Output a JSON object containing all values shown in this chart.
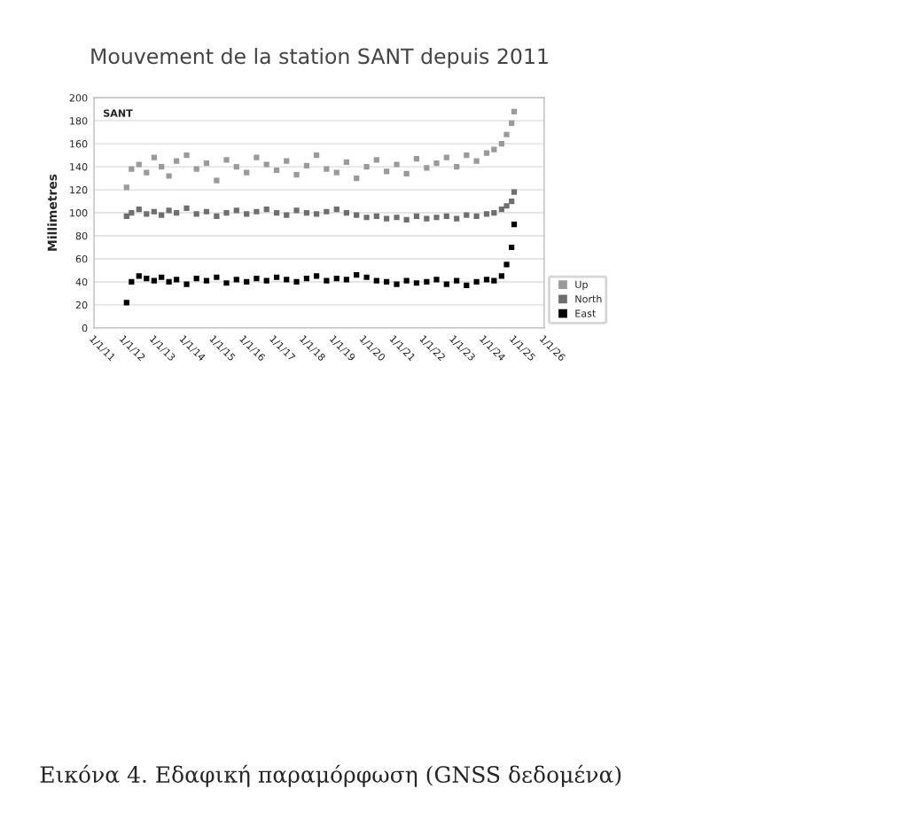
{
  "chart_data": {
    "type": "scatter",
    "title": "Mouvement de la station SANT depuis 2011",
    "ylabel": "Millimetres",
    "annotations": [
      "SANT",
      "Εικόνα 4. Εδαφική παραμόρφωση (GNSS δεδομένα)"
    ],
    "x": [
      "2012-02",
      "2012-04",
      "2012-07",
      "2012-10",
      "2013-01",
      "2013-04",
      "2013-07",
      "2013-10",
      "2014-02",
      "2014-06",
      "2014-10",
      "2015-02",
      "2015-06",
      "2015-10",
      "2016-02",
      "2016-06",
      "2016-10",
      "2017-02",
      "2017-06",
      "2017-10",
      "2018-02",
      "2018-06",
      "2018-10",
      "2019-02",
      "2019-06",
      "2019-10",
      "2020-02",
      "2020-06",
      "2020-10",
      "2021-02",
      "2021-06",
      "2021-10",
      "2022-02",
      "2022-06",
      "2022-10",
      "2023-02",
      "2023-06",
      "2023-10",
      "2024-02",
      "2024-05",
      "2024-08",
      "2024-10",
      "2024-12",
      "2025-01"
    ],
    "series": [
      {
        "name": "Up",
        "color": "#9a9a9a",
        "values": [
          122,
          138,
          142,
          135,
          148,
          140,
          132,
          145,
          150,
          138,
          143,
          128,
          146,
          140,
          135,
          148,
          142,
          137,
          145,
          133,
          141,
          150,
          138,
          135,
          144,
          130,
          140,
          146,
          136,
          142,
          134,
          147,
          139,
          143,
          148,
          140,
          150,
          145,
          152,
          155,
          160,
          168,
          178,
          188
        ]
      },
      {
        "name": "North",
        "color": "#6e6e6e",
        "values": [
          97,
          100,
          103,
          99,
          101,
          98,
          102,
          100,
          104,
          99,
          101,
          97,
          100,
          102,
          99,
          101,
          103,
          100,
          98,
          102,
          100,
          99,
          101,
          103,
          100,
          98,
          96,
          97,
          95,
          96,
          94,
          97,
          95,
          96,
          97,
          95,
          98,
          97,
          99,
          100,
          103,
          106,
          110,
          118
        ]
      },
      {
        "name": "East",
        "color": "#000000",
        "values": [
          22,
          40,
          45,
          43,
          41,
          44,
          40,
          42,
          38,
          43,
          41,
          44,
          39,
          42,
          40,
          43,
          41,
          44,
          42,
          40,
          43,
          45,
          41,
          43,
          42,
          46,
          44,
          41,
          40,
          38,
          41,
          39,
          40,
          42,
          38,
          41,
          37,
          40,
          42,
          41,
          45,
          55,
          70,
          90
        ]
      }
    ],
    "xlim": [
      "2011-01-01",
      "2026-01-01"
    ],
    "xticks": [
      {
        "value": "2011-01-01",
        "label": "1/1/11"
      },
      {
        "value": "2012-01-01",
        "label": "1/1/12"
      },
      {
        "value": "2013-01-01",
        "label": "1/1/13"
      },
      {
        "value": "2014-01-01",
        "label": "1/1/14"
      },
      {
        "value": "2015-01-01",
        "label": "1/1/15"
      },
      {
        "value": "2016-01-01",
        "label": "1/1/16"
      },
      {
        "value": "2017-01-01",
        "label": "1/1/17"
      },
      {
        "value": "2018-01-01",
        "label": "1/1/18"
      },
      {
        "value": "2019-01-01",
        "label": "1/1/19"
      },
      {
        "value": "2020-01-01",
        "label": "1/1/20"
      },
      {
        "value": "2021-01-01",
        "label": "1/1/21"
      },
      {
        "value": "2022-01-01",
        "label": "1/1/22"
      },
      {
        "value": "2023-01-01",
        "label": "1/1/23"
      },
      {
        "value": "2024-01-01",
        "label": "1/1/24"
      },
      {
        "value": "2025-01-01",
        "label": "1/1/25"
      },
      {
        "value": "2026-01-01",
        "label": "1/1/26"
      }
    ],
    "ylim": [
      0,
      200
    ],
    "yticks": [
      0,
      20,
      40,
      60,
      80,
      100,
      120,
      140,
      160,
      180,
      200
    ],
    "grid": "y",
    "legend": "bottom right",
    "marker": "square"
  }
}
